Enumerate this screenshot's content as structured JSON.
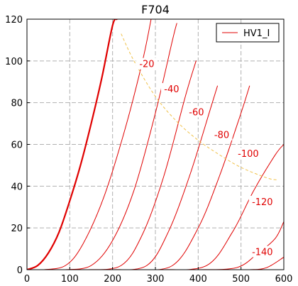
{
  "chart_data": {
    "type": "line",
    "title": "F704",
    "xlabel": "",
    "ylabel": "",
    "xlim": [
      0,
      600
    ],
    "ylim": [
      0,
      120
    ],
    "xticks": [
      0,
      100,
      200,
      300,
      400,
      500,
      600
    ],
    "yticks": [
      0,
      20,
      40,
      60,
      80,
      100,
      120
    ],
    "grid": true,
    "legend": {
      "location": "top-right",
      "entries": [
        "HV1_I"
      ]
    },
    "colors": {
      "curves": "#e00000",
      "dissipation": "#f0c24a",
      "grid": "#b0b0b0"
    },
    "series": [
      {
        "label": "",
        "points": [
          [
            0,
            0
          ],
          [
            25,
            2
          ],
          [
            50,
            8
          ],
          [
            75,
            18
          ],
          [
            100,
            33
          ],
          [
            125,
            50
          ],
          [
            150,
            70
          ],
          [
            175,
            92
          ],
          [
            200,
            117
          ],
          [
            210,
            120
          ]
        ]
      },
      {
        "label": "-20",
        "points": [
          [
            40,
            0
          ],
          [
            90,
            2
          ],
          [
            130,
            12
          ],
          [
            180,
            35
          ],
          [
            230,
            68
          ],
          [
            270,
            100
          ],
          [
            290,
            120
          ]
        ]
      },
      {
        "label": "-40",
        "points": [
          [
            90,
            0
          ],
          [
            150,
            2
          ],
          [
            200,
            14
          ],
          [
            250,
            38
          ],
          [
            300,
            75
          ],
          [
            340,
            110
          ],
          [
            350,
            118
          ]
        ]
      },
      {
        "label": "-60",
        "points": [
          [
            140,
            0
          ],
          [
            220,
            2
          ],
          [
            270,
            17
          ],
          [
            320,
            45
          ],
          [
            370,
            83
          ],
          [
            395,
            100
          ]
        ]
      },
      {
        "label": "-80",
        "points": [
          [
            200,
            0
          ],
          [
            280,
            2
          ],
          [
            330,
            18
          ],
          [
            380,
            45
          ],
          [
            430,
            78
          ],
          [
            445,
            88
          ]
        ]
      },
      {
        "label": "-100",
        "points": [
          [
            250,
            0
          ],
          [
            340,
            2
          ],
          [
            400,
            20
          ],
          [
            450,
            45
          ],
          [
            500,
            75
          ],
          [
            520,
            88
          ]
        ]
      },
      {
        "label": "-120",
        "points": [
          [
            320,
            0
          ],
          [
            420,
            2
          ],
          [
            480,
            18
          ],
          [
            530,
            38
          ],
          [
            580,
            55
          ],
          [
            600,
            60
          ]
        ]
      },
      {
        "label": "-140",
        "points": [
          [
            400,
            0
          ],
          [
            490,
            1
          ],
          [
            540,
            8
          ],
          [
            580,
            15
          ],
          [
            600,
            23
          ]
        ]
      },
      {
        "label": "",
        "points": [
          [
            450,
            0
          ],
          [
            520,
            0
          ],
          [
            560,
            1
          ],
          [
            600,
            6
          ]
        ]
      }
    ],
    "dissipation_curve": {
      "points": [
        [
          220,
          113
        ],
        [
          250,
          100
        ],
        [
          300,
          83
        ],
        [
          350,
          71
        ],
        [
          400,
          62
        ],
        [
          450,
          55
        ],
        [
          500,
          49
        ],
        [
          560,
          44
        ],
        [
          585,
          43
        ]
      ]
    }
  }
}
